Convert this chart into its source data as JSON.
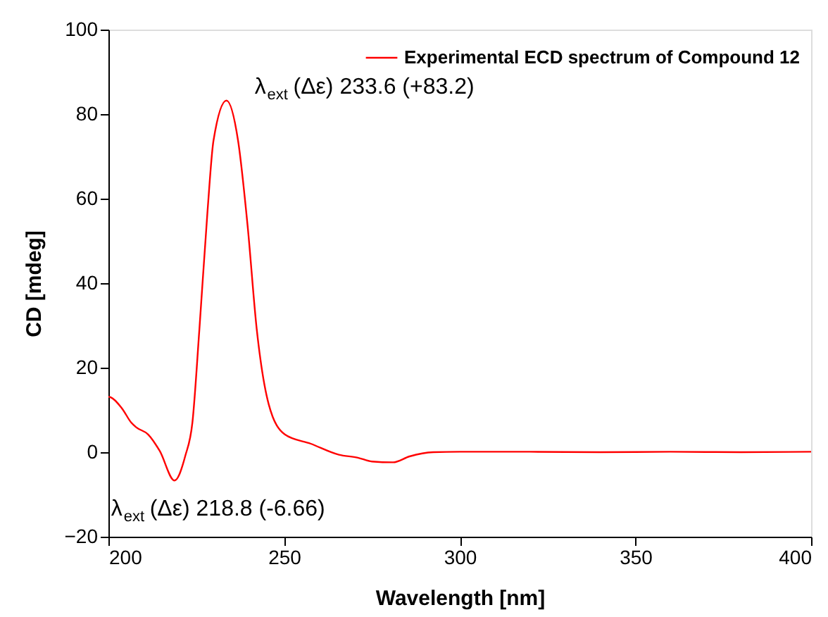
{
  "chart_data": {
    "type": "line",
    "xlabel": "Wavelength [nm]",
    "ylabel": "CD [mdeg]",
    "x": [
      200,
      200.6,
      203.9,
      206.5,
      207.9,
      211.3,
      214.6,
      218.8,
      221.9,
      223.9,
      225.9,
      228.2,
      229.9,
      233.6,
      236.9,
      239.6,
      242.2,
      245.6,
      250.2,
      257.6,
      265.6,
      271,
      275,
      281,
      285.7,
      292.4,
      300,
      320,
      340,
      360,
      380,
      400
    ],
    "series": [
      {
        "name": "Experimental ECD spectrum of Compound 12",
        "color": "#ff0000",
        "values": [
          13.1,
          13.0,
          10.3,
          7,
          5.9,
          4.2,
          0.3,
          -6.7,
          -0.8,
          7,
          29.2,
          57,
          73.7,
          83.2,
          73.7,
          53.7,
          29.2,
          11.4,
          4.2,
          2,
          -0.6,
          -1.3,
          -2.2,
          -2.4,
          -1,
          0,
          0.1,
          0.1,
          0,
          0.1,
          0,
          0.1
        ]
      }
    ],
    "xlim": [
      200,
      400
    ],
    "xticks": [
      200,
      250,
      300,
      350,
      400
    ],
    "ylim": [
      -20,
      100
    ],
    "yticks": [
      -20,
      0,
      20,
      40,
      60,
      80,
      100
    ],
    "annotations": [
      {
        "text": "λ$_{ext}$ (Δε) 233.6 (+83.2)",
        "x": 233.6,
        "y": 83.2
      },
      {
        "text": "λ$_{ext}$ (Δε) 218.8 (-6.66)",
        "x": 218.8,
        "y": -6.66
      }
    ],
    "grid": false,
    "legend": "top right",
    "marker": "none",
    "line_style": "solid"
  }
}
